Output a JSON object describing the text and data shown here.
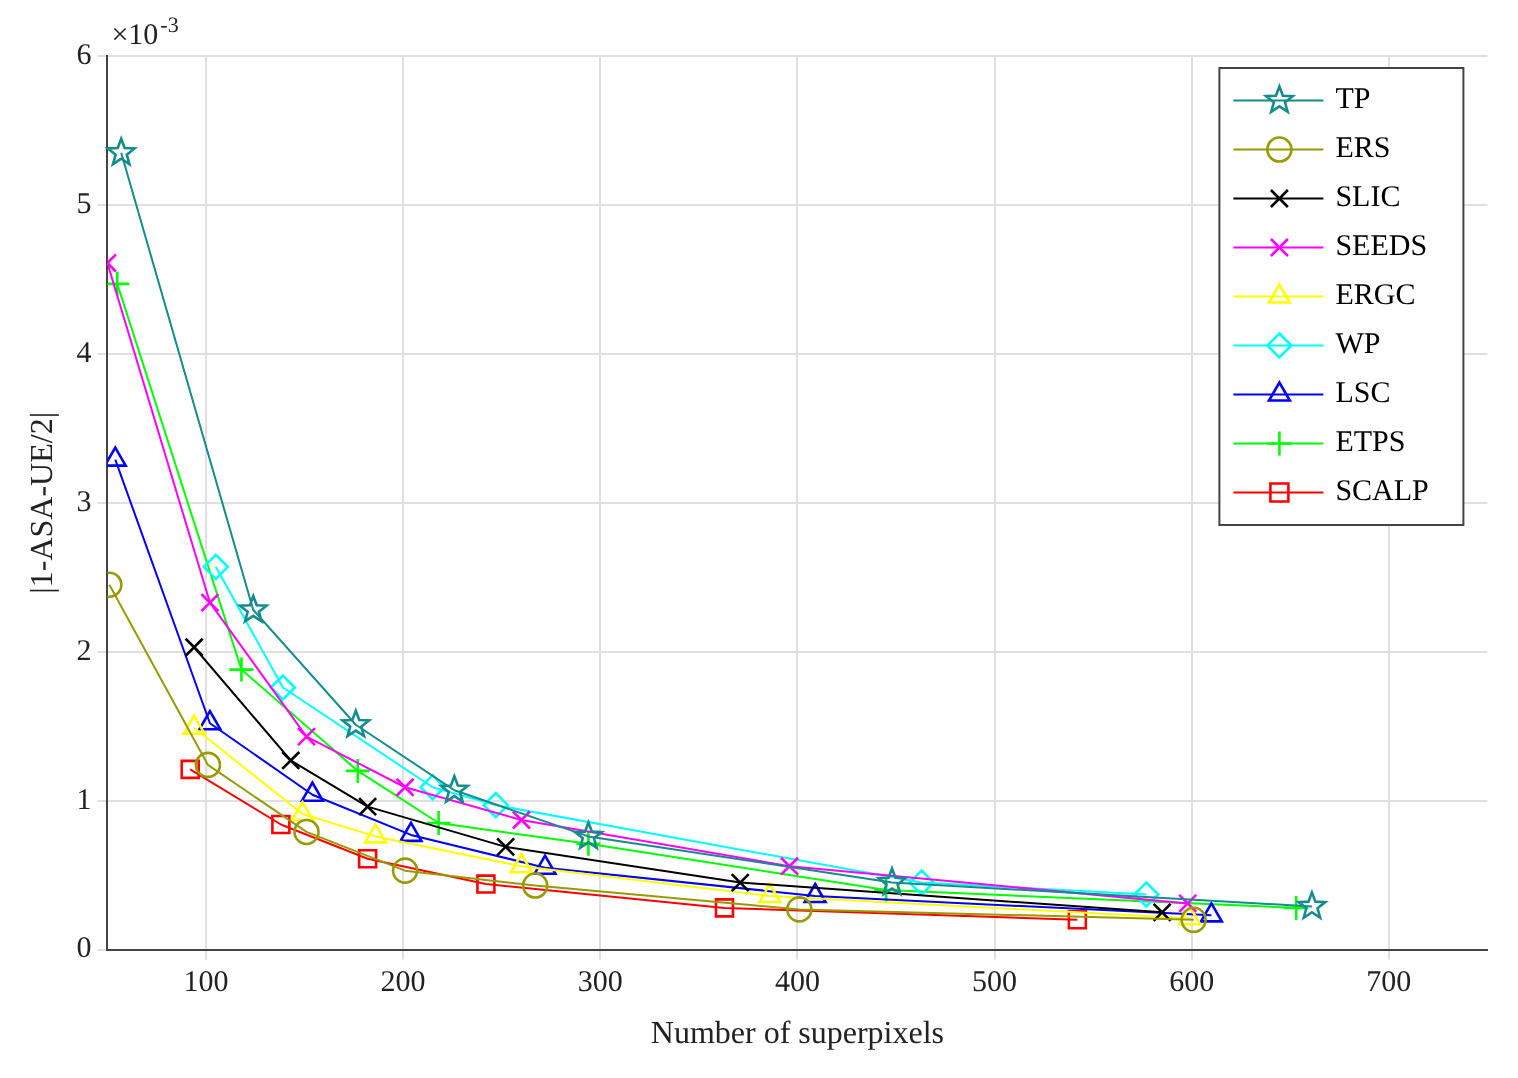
{
  "chart_data": {
    "type": "line",
    "xlabel": "Number of superpixels",
    "ylabel": "|1-ASA-UE/2|",
    "annotations": [
      "×10$^{-3}$"
    ],
    "xlim": [
      50,
      750
    ],
    "xticks": [
      100,
      200,
      300,
      400,
      500,
      600,
      700
    ],
    "ylim": [
      0,
      6
    ],
    "yticks": [
      0,
      1,
      2,
      3,
      4,
      5,
      6
    ],
    "grid": true,
    "legend": "top right",
    "series": [
      {
        "name": "TP",
        "color": "#148c8c",
        "marker": "star",
        "x": [
          57,
          124,
          176,
          226,
          294,
          448,
          661
        ],
        "values": [
          5.35,
          2.28,
          1.51,
          1.07,
          0.76,
          0.45,
          0.29
        ]
      },
      {
        "name": "ERS",
        "color": "#999900",
        "marker": "circle",
        "x": [
          51,
          101,
          151,
          201,
          267,
          401,
          601
        ],
        "values": [
          2.45,
          1.24,
          0.79,
          0.53,
          0.43,
          0.27,
          0.2
        ]
      },
      {
        "name": "SLIC",
        "color": "#000000",
        "marker": "cross",
        "x": [
          94,
          143,
          182,
          252,
          371,
          585
        ],
        "values": [
          2.03,
          1.27,
          0.96,
          0.69,
          0.45,
          0.25
        ]
      },
      {
        "name": "SEEDS",
        "color": "#ff00ff",
        "marker": "cross",
        "x": [
          50,
          102,
          151,
          201,
          260,
          396,
          598
        ],
        "values": [
          4.61,
          2.33,
          1.43,
          1.09,
          0.87,
          0.56,
          0.31
        ]
      },
      {
        "name": "ERGC",
        "color": "#ffff00",
        "marker": "triangle",
        "x": [
          94,
          149,
          186,
          260,
          386,
          599
        ],
        "values": [
          1.49,
          0.91,
          0.76,
          0.56,
          0.36,
          0.21
        ]
      },
      {
        "name": "WP",
        "color": "#00ffff",
        "marker": "diamond",
        "x": [
          105,
          139,
          215,
          247,
          463,
          577
        ],
        "values": [
          2.57,
          1.76,
          1.09,
          0.97,
          0.45,
          0.37
        ]
      },
      {
        "name": "LSC",
        "color": "#0000ff",
        "marker": "triangle",
        "x": [
          54,
          102,
          154,
          204,
          272,
          409,
          610
        ],
        "values": [
          3.29,
          1.52,
          1.04,
          0.77,
          0.55,
          0.36,
          0.23
        ]
      },
      {
        "name": "ETPS",
        "color": "#00ff00",
        "marker": "plus",
        "x": [
          55,
          118,
          177,
          218,
          294,
          445,
          653
        ],
        "values": [
          4.47,
          1.88,
          1.2,
          0.85,
          0.71,
          0.4,
          0.28
        ]
      },
      {
        "name": "SCALP",
        "color": "#ff0000",
        "marker": "square",
        "x": [
          92,
          138,
          182,
          242,
          363,
          542
        ],
        "values": [
          1.21,
          0.84,
          0.61,
          0.44,
          0.28,
          0.2
        ]
      }
    ]
  }
}
